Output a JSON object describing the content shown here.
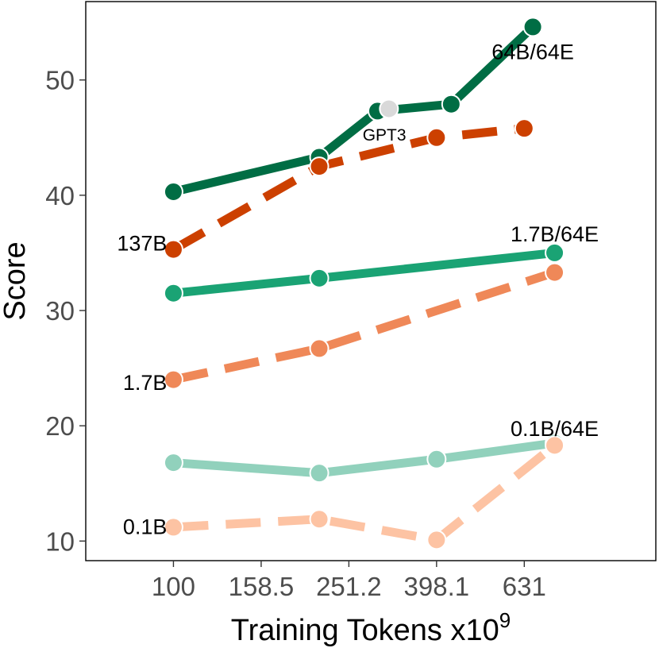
{
  "chart_data": {
    "type": "line",
    "title": "",
    "xlabel": "Training Tokens x10",
    "xlabel_sup": "9",
    "ylabel": "Score",
    "x_scale": "log10",
    "xlim": [
      63.1,
      1258.9
    ],
    "ylim": [
      8.3,
      56.8
    ],
    "x_ticks": [
      100,
      158.5,
      251.2,
      398.1,
      631
    ],
    "x_tick_labels": [
      "100",
      "158.5",
      "251.2",
      "398.1",
      "631"
    ],
    "y_ticks": [
      10,
      20,
      30,
      40,
      50
    ],
    "y_tick_labels": [
      "10",
      "20",
      "30",
      "40",
      "50"
    ],
    "grid": false,
    "legend": "none",
    "series": [
      {
        "name": "64B/64E",
        "dashed": false,
        "color": "#006d44",
        "x": [
          100,
          215,
          292,
          430,
          660
        ],
        "y": [
          40.3,
          43.3,
          47.3,
          47.9,
          54.6
        ],
        "label_x": 660,
        "label_y": 52.5
      },
      {
        "name": "137B",
        "dashed": true,
        "color": "#cc4000",
        "x": [
          100,
          215,
          398.1,
          631
        ],
        "y": [
          35.3,
          42.5,
          45.0,
          45.8
        ],
        "label_x": 100,
        "label_y": 35.9
      },
      {
        "name": "1.7B/64E",
        "dashed": false,
        "color": "#1aa374",
        "x": [
          100,
          215,
          740
        ],
        "y": [
          31.5,
          32.8,
          35.0
        ],
        "label_x": 740,
        "label_y": 36.7
      },
      {
        "name": "1.7B",
        "dashed": true,
        "color": "#ef8858",
        "x": [
          100,
          215,
          740
        ],
        "y": [
          24.0,
          26.7,
          33.3
        ],
        "label_x": 100,
        "label_y": 23.8
      },
      {
        "name": "0.1B/64E",
        "dashed": false,
        "color": "#91d1bc",
        "x": [
          100,
          215,
          398.1,
          740
        ],
        "y": [
          16.8,
          15.9,
          17.1,
          18.5
        ],
        "label_x": 740,
        "label_y": 19.8
      },
      {
        "name": "0.1B",
        "dashed": true,
        "color": "#fdc3a3",
        "x": [
          100,
          215,
          398.1,
          740
        ],
        "y": [
          11.2,
          11.9,
          10.1,
          18.3
        ],
        "label_x": 100,
        "label_y": 11.3
      }
    ],
    "points": [
      {
        "name": "GPT3",
        "x": 310,
        "y": 47.5,
        "color": "#d9d9d9",
        "label_x": 270,
        "label_y": 45.3
      }
    ]
  }
}
